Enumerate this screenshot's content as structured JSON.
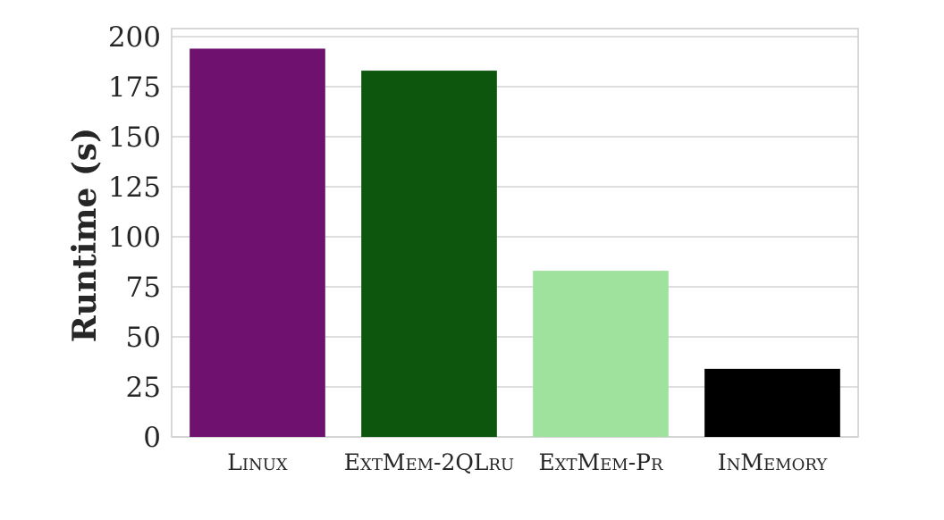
{
  "chart_data": {
    "type": "bar",
    "categories": [
      "Linux",
      "ExtMem-2QLru",
      "ExtMem-Pr",
      "InMemory"
    ],
    "values": [
      194,
      183,
      83,
      34
    ],
    "colors": [
      "#6f116f",
      "#0d560d",
      "#9ee29e",
      "#000000"
    ],
    "title": "",
    "xlabel": "",
    "ylabel": "Runtime (s)",
    "ylim": [
      0,
      200
    ],
    "yticks": [
      "0",
      "25",
      "50",
      "75",
      "100",
      "125",
      "150",
      "175",
      "200"
    ],
    "grid": true
  }
}
